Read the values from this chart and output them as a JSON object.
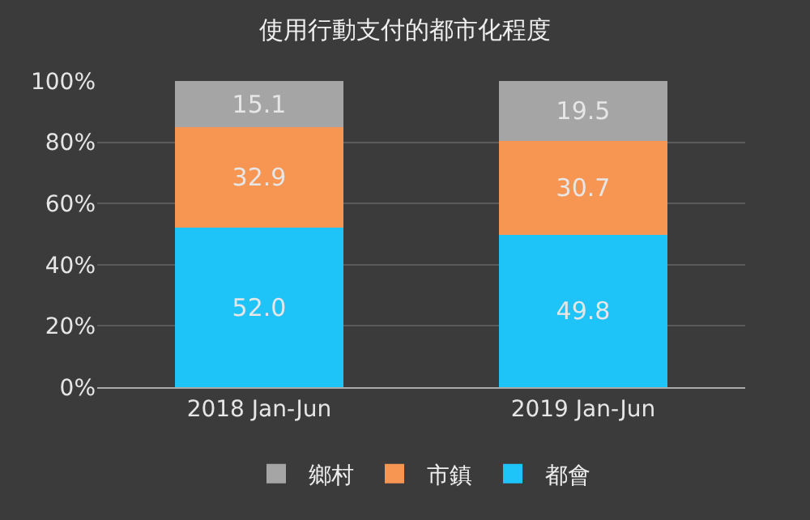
{
  "chart_data": {
    "type": "bar",
    "title": "使用行動支付的都市化程度",
    "categories": [
      "2018 Jan-Jun",
      "2019 Jan-Jun"
    ],
    "stacked": true,
    "series": [
      {
        "name": "都會",
        "color": "#1ec3f7",
        "values": [
          52.0,
          49.8
        ],
        "value_labels": [
          "52.0",
          "49.8"
        ]
      },
      {
        "name": "市鎮",
        "color": "#f79552",
        "values": [
          32.9,
          30.7
        ],
        "value_labels": [
          "32.9",
          "30.7"
        ]
      },
      {
        "name": "鄉村",
        "color": "#a5a5a5",
        "values": [
          15.1,
          19.5
        ],
        "value_labels": [
          "15.1",
          "19.5"
        ]
      }
    ],
    "ylim": [
      0,
      100
    ],
    "yticks": [
      {
        "value": 0,
        "label": "0%"
      },
      {
        "value": 20,
        "label": "20%"
      },
      {
        "value": 40,
        "label": "40%"
      },
      {
        "value": 60,
        "label": "60%"
      },
      {
        "value": 80,
        "label": "80%"
      },
      {
        "value": 100,
        "label": "100%"
      }
    ],
    "grid": "y",
    "legend": "bottom"
  }
}
